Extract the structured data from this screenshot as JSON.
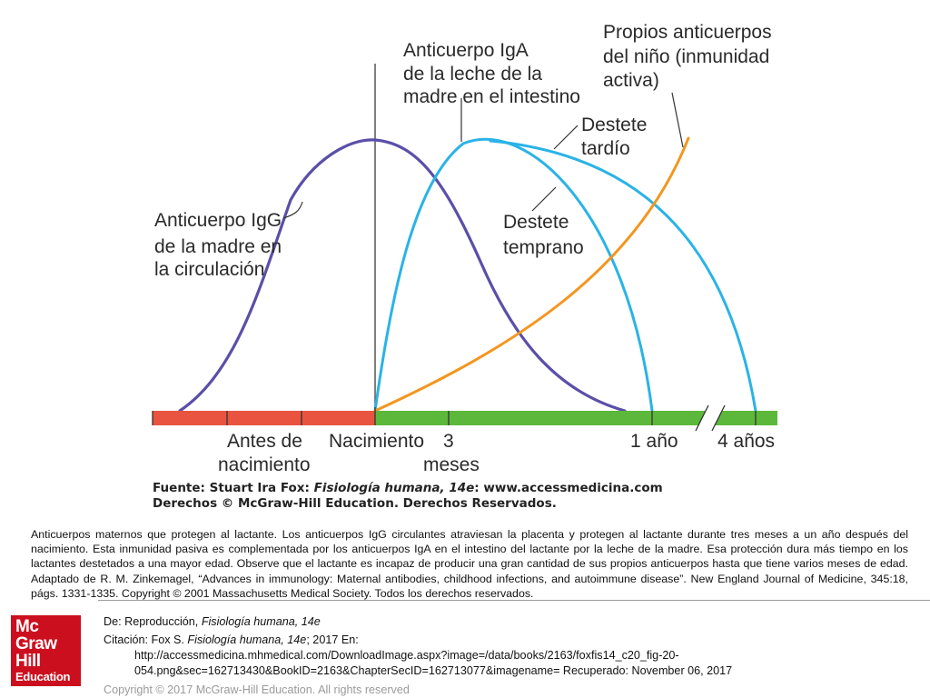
{
  "labels": {
    "igg": [
      "Anticuerpo IgG",
      "de la madre en",
      "la circulación"
    ],
    "iga": [
      "Anticuerpo IgA",
      "de la leche de la",
      "madre en el intestino"
    ],
    "propios": [
      "Propios anticuerpos",
      "del niño (inmunidad",
      "activa)"
    ],
    "destete_tardio": [
      "Destete",
      "tardío"
    ],
    "destete_temprano": [
      "Destete",
      "temprano"
    ]
  },
  "axis": {
    "antes": [
      "Antes de",
      "nacimiento"
    ],
    "nacimiento": "Nacimiento",
    "tres": [
      "3",
      "meses"
    ],
    "un_ano": "1 año",
    "cuatro": "4 años"
  },
  "source": {
    "line1_prefix": "Fuente: Stuart Ira Fox: ",
    "line1_italic": "Fisiología humana, 14e",
    "line1_suffix": ": www.accessmedicina.com",
    "line2": "Derechos © McGraw-Hill Education. Derechos Reservados."
  },
  "caption": "Anticuerpos maternos que protegen al lactante. Los anticuerpos IgG circulantes atraviesan la placenta y protegen al lactante durante tres meses a un año después del nacimiento. Esta inmunidad pasiva es complementada por los anticuerpos IgA en el intestino del lactante por la leche de la madre. Esa protección dura más tiempo en los lactantes destetados a una mayor edad. Observe que el lactante es incapaz de producir una gran cantidad de sus propios anticuerpos hasta que tiene varios meses de edad. Adaptado de R. M. Zinkemagel, “Advances in immunology: Maternal antibodies, childhood infections, and autoimmune disease”. New England Journal of Medicine, 345:18, págs. 1331-1335. Copyright © 2001 Massachusetts Medical Society. Todos los derechos reservados.",
  "logo": {
    "line1": "Mc",
    "line2": "Graw",
    "line3": "Hill",
    "line4": "Education"
  },
  "citation": {
    "de_prefix": "De: Reproducción, ",
    "de_italic": "Fisiología humana, 14e",
    "cita_prefix": "Citación: Fox S. ",
    "cita_italic": "Fisiología humana, 14e",
    "cita_suffix": "; 2017 En:",
    "url1": "http://accessmedicina.mhmedical.com/DownloadImage.aspx?image=/data/books/2163/foxfis14_c20_fig-20-",
    "url2": "054.png&sec=162713430&BookID=2163&ChapterSecID=162713077&imagename= Recuperado: November 06, 2017"
  },
  "copyright": "Copyright © 2017 McGraw-Hill Education. All rights reserved",
  "colors": {
    "igg_curve": "#5a4fa8",
    "iga_curve": "#2ab3e6",
    "active_curve": "#f3961f",
    "prenatal_bar": "#e8543f",
    "postnatal_bar": "#5cb83a",
    "logo_bg": "#cc0f1e"
  }
}
